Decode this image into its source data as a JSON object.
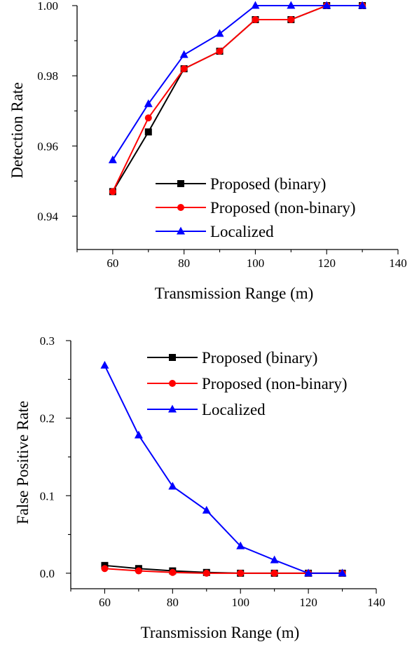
{
  "chart_data": [
    {
      "type": "line",
      "title": "",
      "xlabel": "Transmission Range (m)",
      "ylabel": "Detection Rate",
      "xlim": [
        50,
        140
      ],
      "ylim": [
        0.9305,
        1.0
      ],
      "xticks": [
        60,
        80,
        100,
        120,
        140
      ],
      "xtick_labels": [
        "60",
        "80",
        "100",
        "120",
        "140"
      ],
      "yticks": [
        0.94,
        0.96,
        0.98,
        1.0
      ],
      "ytick_labels": [
        "0.94",
        "0.96",
        "0.98",
        "1.00"
      ],
      "x": [
        60,
        70,
        80,
        90,
        100,
        110,
        120,
        130
      ],
      "legend_position": "bottom-right",
      "grid": false,
      "series": [
        {
          "name": "Proposed (binary)",
          "color": "#000000",
          "marker": "square",
          "values": [
            0.947,
            0.964,
            0.982,
            0.987,
            0.996,
            0.996,
            1.0,
            1.0
          ]
        },
        {
          "name": "Proposed (non-binary)",
          "color": "#ff0000",
          "marker": "circle",
          "values": [
            0.947,
            0.968,
            0.982,
            0.987,
            0.996,
            0.996,
            1.0,
            1.0
          ]
        },
        {
          "name": "Localized",
          "color": "#0000ff",
          "marker": "triangle",
          "values": [
            0.956,
            0.972,
            0.986,
            0.992,
            1.0,
            1.0,
            1.0,
            1.0
          ]
        }
      ]
    },
    {
      "type": "line",
      "title": "",
      "xlabel": "Transmission Range (m)",
      "ylabel": "False Positive Rate",
      "xlim": [
        50,
        140
      ],
      "ylim": [
        -0.02,
        0.3
      ],
      "xticks": [
        60,
        80,
        100,
        120,
        140
      ],
      "xtick_labels": [
        "60",
        "80",
        "100",
        "120",
        "140"
      ],
      "yticks": [
        0.0,
        0.1,
        0.2,
        0.3
      ],
      "ytick_labels": [
        "0.0",
        "0.1",
        "0.2",
        "0.3"
      ],
      "x": [
        60,
        70,
        80,
        90,
        100,
        110,
        120,
        130
      ],
      "legend_position": "top-right",
      "grid": false,
      "series": [
        {
          "name": "Proposed (binary)",
          "color": "#000000",
          "marker": "square",
          "values": [
            0.01,
            0.006,
            0.003,
            0.001,
            0.0,
            0.0,
            0.0,
            0.0
          ]
        },
        {
          "name": "Proposed (non-binary)",
          "color": "#ff0000",
          "marker": "circle",
          "values": [
            0.006,
            0.003,
            0.001,
            0.0,
            0.0,
            0.0,
            0.0,
            0.0
          ]
        },
        {
          "name": "Localized",
          "color": "#0000ff",
          "marker": "triangle",
          "values": [
            0.268,
            0.178,
            0.112,
            0.081,
            0.035,
            0.017,
            0.0,
            0.0
          ]
        }
      ]
    }
  ]
}
